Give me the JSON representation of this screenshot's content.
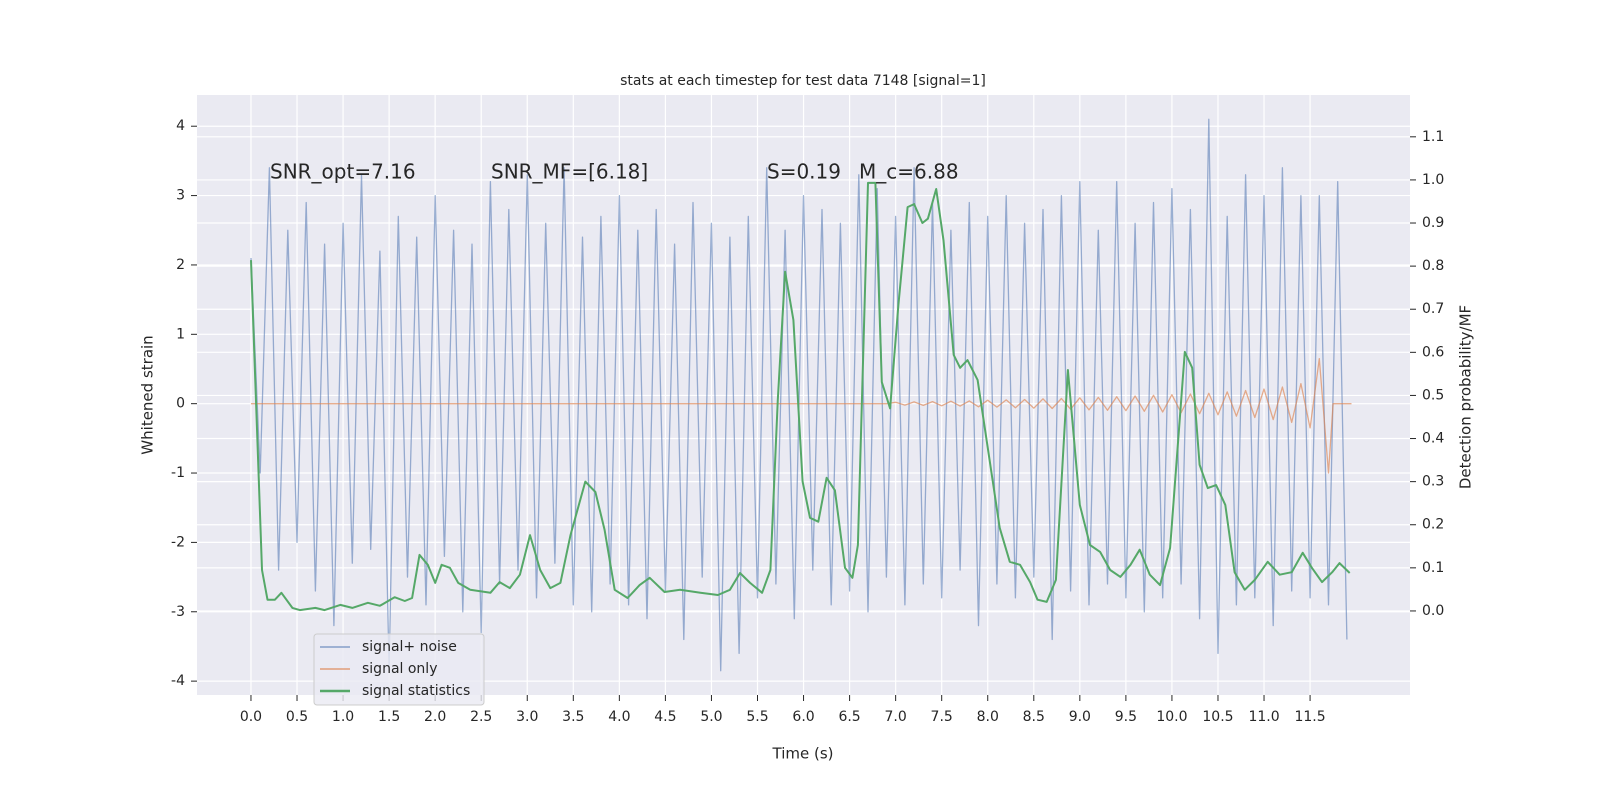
{
  "chart_data": {
    "type": "line",
    "title": "stats at each timestep for test data 7148 [signal=1]",
    "xlabel": "Time (s)",
    "ylabel": "Whitened strain",
    "y2label": "Detection probability/MF",
    "annotations": [
      "SNR_opt=7.16",
      "SNR_MF=[6.18]",
      "S=0.19",
      "M_c=6.88"
    ],
    "xlim": [
      -0.586,
      12.585
    ],
    "ylim": [
      -4.2,
      4.45
    ],
    "y2lim": [
      -0.195,
      1.197
    ],
    "xticks": [
      {
        "value": 0,
        "label": "0.0"
      },
      0.5,
      {
        "value": 1,
        "label": "1.0"
      },
      1.5,
      {
        "value": 2,
        "label": "2.0"
      },
      2.5,
      {
        "value": 3,
        "label": "3.0"
      },
      3.5,
      {
        "value": 4,
        "label": "4.0"
      },
      4.5,
      {
        "value": 5,
        "label": "5.0"
      },
      5.5,
      {
        "value": 6,
        "label": "6.0"
      },
      6.5,
      {
        "value": 7,
        "label": "7.0"
      },
      7.5,
      {
        "value": 8,
        "label": "8.0"
      },
      8.5,
      {
        "value": 9,
        "label": "9.0"
      },
      9.5,
      {
        "value": 10,
        "label": "10.0"
      },
      10.5,
      {
        "value": 11,
        "label": "11.0"
      },
      11.5
    ],
    "yticks": [
      -4,
      -3,
      -2,
      -1,
      0,
      1,
      2,
      3,
      4
    ],
    "y2ticks": [
      {
        "value": 0,
        "label": "0.0"
      },
      0.1,
      0.2,
      0.3,
      0.4,
      0.5,
      0.6,
      0.7,
      0.8,
      0.9,
      {
        "value": 1,
        "label": "1.0"
      },
      1.1
    ],
    "grid": true,
    "legend": "lower left",
    "series": [
      {
        "name": "signal+ noise",
        "color": "#4c72b0",
        "x": [
          0.0,
          0.1,
          0.2,
          0.3,
          0.4,
          0.5,
          0.6,
          0.7,
          0.8,
          0.9,
          1.0,
          1.1,
          1.2,
          1.3,
          1.4,
          1.5,
          1.6,
          1.7,
          1.8,
          1.9,
          2.0,
          2.1,
          2.2,
          2.3,
          2.4,
          2.5,
          2.6,
          2.7,
          2.8,
          2.9,
          3.0,
          3.1,
          3.2,
          3.3,
          3.4,
          3.5,
          3.6,
          3.7,
          3.8,
          3.9,
          4.0,
          4.1,
          4.2,
          4.3,
          4.4,
          4.5,
          4.6,
          4.7,
          4.8,
          4.9,
          5.0,
          5.1,
          5.2,
          5.3,
          5.4,
          5.5,
          5.6,
          5.7,
          5.8,
          5.9,
          6.0,
          6.1,
          6.2,
          6.3,
          6.4,
          6.5,
          6.6,
          6.7,
          6.8,
          6.9,
          7.0,
          7.1,
          7.2,
          7.3,
          7.4,
          7.5,
          7.6,
          7.7,
          7.8,
          7.9,
          8.0,
          8.1,
          8.2,
          8.3,
          8.4,
          8.5,
          8.6,
          8.7,
          8.8,
          8.9,
          9.0,
          9.1,
          9.2,
          9.3,
          9.4,
          9.5,
          9.6,
          9.7,
          9.8,
          9.9,
          10.0,
          10.1,
          10.2,
          10.3,
          10.4,
          10.5,
          10.6,
          10.7,
          10.8,
          10.9,
          11.0,
          11.1,
          11.2,
          11.3,
          11.4,
          11.5,
          11.6,
          11.7,
          11.8,
          11.9
        ],
        "values": [
          2.1,
          -1.0,
          3.4,
          -2.4,
          2.5,
          -2.0,
          2.9,
          -2.7,
          2.3,
          -3.2,
          2.6,
          -2.3,
          3.3,
          -2.1,
          2.2,
          -3.8,
          2.7,
          -2.5,
          2.4,
          -2.9,
          3.0,
          -2.2,
          2.5,
          -3.0,
          2.3,
          -3.3,
          3.2,
          -2.6,
          2.8,
          -2.4,
          3.3,
          -2.8,
          2.6,
          -2.3,
          3.4,
          -2.9,
          2.4,
          -3.0,
          2.7,
          -2.6,
          3.0,
          -2.9,
          2.5,
          -3.1,
          2.8,
          -2.7,
          2.3,
          -3.4,
          2.9,
          -2.5,
          2.6,
          -3.85,
          2.4,
          -3.6,
          2.7,
          -2.8,
          3.4,
          -2.6,
          2.5,
          -3.1,
          3.0,
          -2.4,
          2.8,
          -2.9,
          2.6,
          -2.7,
          3.3,
          -3.0,
          3.1,
          -2.5,
          2.7,
          -2.9,
          3.4,
          -2.6,
          2.9,
          -2.8,
          2.5,
          -2.4,
          2.9,
          -3.2,
          2.7,
          -2.6,
          3.0,
          -2.8,
          2.6,
          -2.5,
          2.8,
          -3.4,
          3.0,
          -2.7,
          3.2,
          -2.9,
          2.5,
          -2.6,
          3.2,
          -2.8,
          2.6,
          -3.0,
          2.9,
          -2.8,
          3.1,
          -2.6,
          2.8,
          -3.1,
          4.1,
          -3.6,
          2.7,
          -2.9,
          3.3,
          -2.8,
          3.0,
          -3.2,
          3.4,
          -2.7,
          3.0,
          -2.8,
          3.0,
          -2.9,
          3.2,
          -3.4
        ]
      },
      {
        "name": "signal only",
        "color": "#dd8452",
        "x": [
          0.0,
          6.9,
          7.0,
          7.1,
          7.2,
          7.3,
          7.4,
          7.5,
          7.6,
          7.7,
          7.8,
          7.9,
          8.0,
          8.1,
          8.2,
          8.3,
          8.4,
          8.5,
          8.6,
          8.7,
          8.8,
          8.9,
          9.0,
          9.1,
          9.2,
          9.3,
          9.4,
          9.5,
          9.6,
          9.7,
          9.8,
          9.9,
          10.0,
          10.1,
          10.2,
          10.3,
          10.4,
          10.5,
          10.6,
          10.7,
          10.8,
          10.9,
          11.0,
          11.1,
          11.2,
          11.3,
          11.4,
          11.5,
          11.6,
          11.7,
          11.75,
          11.95
        ],
        "values": [
          0,
          0,
          0.02,
          -0.02,
          0.025,
          -0.025,
          0.03,
          -0.03,
          0.035,
          -0.035,
          0.04,
          -0.045,
          0.05,
          -0.05,
          0.055,
          -0.06,
          0.06,
          -0.065,
          0.07,
          -0.07,
          0.075,
          -0.08,
          0.085,
          -0.09,
          0.09,
          -0.095,
          0.1,
          -0.1,
          0.11,
          -0.11,
          0.12,
          -0.12,
          0.13,
          -0.13,
          0.14,
          -0.145,
          0.15,
          -0.16,
          0.17,
          -0.18,
          0.19,
          -0.2,
          0.21,
          -0.23,
          0.24,
          -0.27,
          0.29,
          -0.35,
          0.65,
          -1.0,
          0,
          0
        ]
      },
      {
        "name": "signal statistics",
        "color": "#55a868",
        "axis": "y2",
        "x": [
          0,
          0.12,
          0.18,
          0.26,
          0.33,
          0.45,
          0.53,
          0.7,
          0.8,
          0.97,
          1.1,
          1.27,
          1.4,
          1.56,
          1.67,
          1.75,
          1.83,
          1.92,
          2.0,
          2.07,
          2.16,
          2.25,
          2.38,
          2.6,
          2.7,
          2.81,
          2.92,
          3.03,
          3.14,
          3.25,
          3.36,
          3.47,
          3.63,
          3.74,
          3.84,
          3.95,
          4.09,
          4.22,
          4.33,
          4.49,
          4.66,
          4.88,
          5.07,
          5.2,
          5.31,
          5.42,
          5.55,
          5.64,
          5.72,
          5.8,
          5.89,
          5.99,
          6.07,
          6.16,
          6.25,
          6.34,
          6.45,
          6.53,
          6.59,
          6.7,
          6.78,
          6.85,
          6.94,
          7.03,
          7.13,
          7.2,
          7.29,
          7.35,
          7.44,
          7.52,
          7.63,
          7.7,
          7.78,
          7.89,
          8.02,
          8.13,
          8.24,
          8.35,
          8.46,
          8.54,
          8.64,
          8.74,
          8.87,
          9.0,
          9.11,
          9.22,
          9.33,
          9.44,
          9.55,
          9.65,
          9.76,
          9.87,
          9.98,
          10.14,
          10.22,
          10.3,
          10.39,
          10.48,
          10.58,
          10.68,
          10.79,
          10.9,
          11.04,
          11.17,
          11.3,
          11.42,
          11.52,
          11.63,
          11.74,
          11.82,
          11.93
        ],
        "values": [
          0.814,
          0.095,
          0.026,
          0.026,
          0.042,
          0.007,
          0.002,
          0.007,
          0.002,
          0.014,
          0.007,
          0.019,
          0.012,
          0.032,
          0.023,
          0.03,
          0.13,
          0.107,
          0.065,
          0.107,
          0.1,
          0.065,
          0.049,
          0.042,
          0.067,
          0.053,
          0.084,
          0.176,
          0.095,
          0.053,
          0.065,
          0.176,
          0.3,
          0.276,
          0.188,
          0.049,
          0.03,
          0.06,
          0.077,
          0.044,
          0.049,
          0.042,
          0.037,
          0.049,
          0.088,
          0.065,
          0.042,
          0.095,
          0.49,
          0.787,
          0.675,
          0.3,
          0.216,
          0.207,
          0.309,
          0.28,
          0.1,
          0.077,
          0.153,
          0.993,
          0.993,
          0.531,
          0.47,
          0.71,
          0.937,
          0.944,
          0.9,
          0.91,
          0.979,
          0.86,
          0.594,
          0.564,
          0.582,
          0.536,
          0.35,
          0.193,
          0.114,
          0.107,
          0.067,
          0.026,
          0.021,
          0.072,
          0.559,
          0.246,
          0.153,
          0.137,
          0.095,
          0.079,
          0.107,
          0.142,
          0.084,
          0.06,
          0.146,
          0.601,
          0.564,
          0.339,
          0.285,
          0.292,
          0.246,
          0.09,
          0.049,
          0.072,
          0.114,
          0.084,
          0.09,
          0.135,
          0.1,
          0.067,
          0.09,
          0.111,
          0.088
        ]
      }
    ]
  }
}
